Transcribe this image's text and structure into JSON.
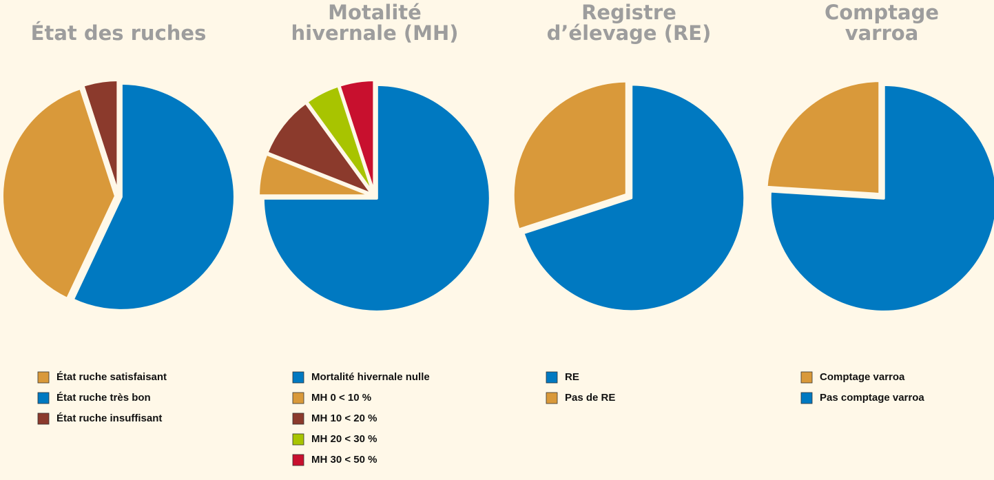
{
  "chart_data": [
    {
      "type": "pie",
      "title": [
        "État des ruches"
      ],
      "categories": [
        "État ruche très bon",
        "État ruche satisfaisant",
        "État ruche insuffisant"
      ],
      "values": [
        57,
        38,
        5
      ],
      "colors": [
        "#0079c1",
        "#d9993a",
        "#8b3a2c"
      ]
    },
    {
      "type": "pie",
      "title": [
        "Motalité",
        "hivernale (MH)"
      ],
      "categories": [
        "Mortalité hivernale nulle",
        "MH 0 < 10 %",
        "MH 10 < 20 %",
        "MH 20 < 30 %",
        "MH 30 < 50 %"
      ],
      "values": [
        75,
        6,
        9,
        5,
        5
      ],
      "colors": [
        "#0079c1",
        "#d9993a",
        "#8b3a2c",
        "#a8c400",
        "#c8102e"
      ]
    },
    {
      "type": "pie",
      "title": [
        "Registre",
        "d’élevage (RE)"
      ],
      "categories": [
        "RE",
        "Pas de RE"
      ],
      "values": [
        70,
        30
      ],
      "colors": [
        "#0079c1",
        "#d9993a"
      ]
    },
    {
      "type": "pie",
      "title": [
        "Comptage",
        "varroa"
      ],
      "categories": [
        "Pas comptage varroa",
        "Comptage varroa"
      ],
      "values": [
        76,
        24
      ],
      "colors": [
        "#0079c1",
        "#d9993a"
      ]
    }
  ]
}
